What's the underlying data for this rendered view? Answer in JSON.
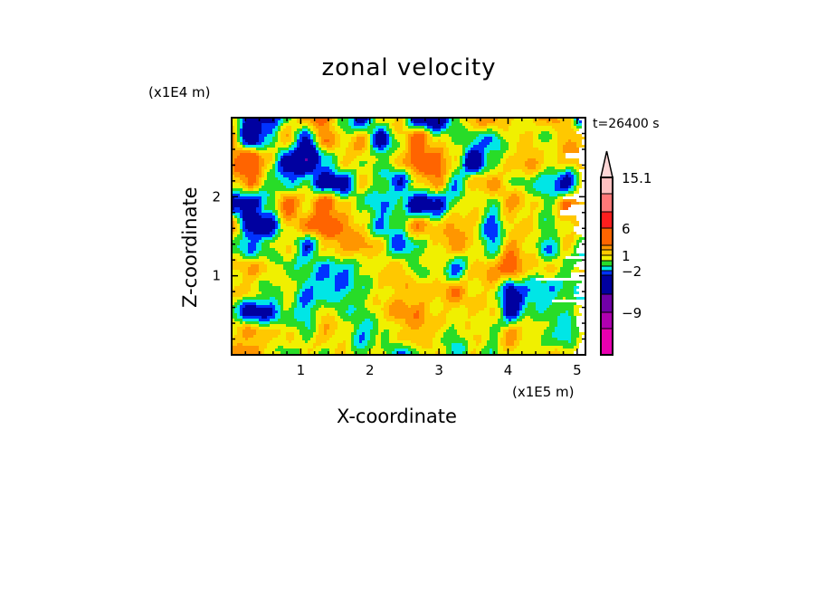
{
  "chart_data": {
    "type": "heatmap",
    "title": "zonal velocity",
    "xlabel": "X-coordinate",
    "ylabel": "Z-coordinate",
    "x_unit": "(x1E5 m)",
    "y_unit": "(x1E4 m)",
    "annotation": "t=26400 s",
    "xlim": [
      0,
      5.12
    ],
    "ylim": [
      0,
      3.0
    ],
    "x_ticks": [
      "1",
      "2",
      "3",
      "4",
      "5"
    ],
    "y_ticks": [
      "1",
      "2"
    ],
    "grid": false,
    "legend": "colorbar right",
    "colorbar": {
      "labels": [
        "15.1",
        "6",
        "1",
        "−2",
        "−9"
      ],
      "levels": [
        -12,
        -9,
        -6,
        -3,
        -2,
        -1,
        0,
        1,
        2,
        3,
        6,
        9,
        12,
        15.1
      ],
      "colors": [
        "#e800b0",
        "#b000b0",
        "#7000a8",
        "#0000a0",
        "#0032ff",
        "#00e6e6",
        "#28dc28",
        "#f0f000",
        "#ffc800",
        "#ff9600",
        "#ff6400",
        "#ff1e1e",
        "#ff7878",
        "#ffc0c0",
        "#ffd8d8"
      ]
    },
    "z_grid_rows_top_to_bottom": [
      [
        0.5,
        -4,
        -4,
        -0.5,
        3,
        3.5,
        -1,
        -4,
        0.5,
        1.5,
        -4,
        -5,
        -1,
        2,
        3,
        1,
        0.5,
        2.5,
        1,
        -4
      ],
      [
        2,
        -5,
        -1,
        2,
        -4,
        3,
        0.5,
        2.5,
        -4,
        0.5,
        4,
        0.5,
        0,
        -1,
        -2,
        0.5,
        1,
        -0.5,
        2.5,
        1
      ],
      [
        3,
        6,
        1,
        -4,
        -6,
        -2,
        1.5,
        0.5,
        -0.5,
        1,
        4,
        4,
        1,
        -5,
        -0.5,
        1,
        2.5,
        1,
        1.5,
        2.5
      ],
      [
        1,
        3,
        -0.5,
        -2,
        -0.5,
        -4,
        -4,
        1,
        -0.5,
        -3,
        1,
        3,
        -2,
        1,
        2.5,
        0.5,
        -0.5,
        -2,
        -4,
        1
      ],
      [
        -4,
        -4,
        -1,
        4,
        1,
        4,
        1,
        -0.5,
        -2,
        -0.5,
        -5,
        -4,
        -0.5,
        1,
        -0.5,
        2.5,
        1,
        -0.5,
        3,
        2.5
      ],
      [
        2.5,
        -4,
        -4,
        1,
        2.5,
        4,
        3,
        1,
        -2,
        -0.5,
        2.5,
        1,
        2.5,
        1,
        -3,
        1,
        1,
        -0.5,
        1,
        2
      ],
      [
        -0.5,
        -2,
        -0.5,
        1,
        -3,
        1,
        2.5,
        2.5,
        1,
        -3,
        -0.5,
        1,
        2.5,
        1,
        -2,
        2.5,
        1,
        -2,
        1,
        -2
      ],
      [
        1,
        2,
        1,
        -0.5,
        -0.5,
        -2,
        -2,
        -0.5,
        1,
        2,
        -0.5,
        1,
        -3,
        1,
        2.5,
        4,
        1,
        1,
        -0.5,
        1
      ],
      [
        1,
        1,
        -0.5,
        1,
        -2,
        -2,
        -2,
        -0.5,
        1,
        1.5,
        1.5,
        1,
        3,
        1,
        1,
        -4,
        -2,
        -2,
        -0.5,
        -2
      ],
      [
        -0.5,
        -4,
        -3,
        -0.5,
        -2,
        1,
        -0.5,
        -0.5,
        1,
        2.5,
        2.5,
        1,
        1,
        1,
        1,
        -4,
        -0.5,
        -0.5,
        -0.5,
        1
      ],
      [
        1,
        2.5,
        1,
        1,
        -0.5,
        2,
        1,
        -2,
        -0.5,
        1,
        2.5,
        1,
        -0.5,
        1,
        -0.5,
        2.5,
        1,
        -0.5,
        -2,
        1
      ],
      [
        2,
        2.5,
        1,
        -0.5,
        1,
        -0.5,
        1,
        -0.5,
        1,
        -2,
        -0.5,
        1,
        -2,
        1,
        -0.5,
        1,
        -0.5,
        1,
        1,
        2
      ]
    ]
  }
}
